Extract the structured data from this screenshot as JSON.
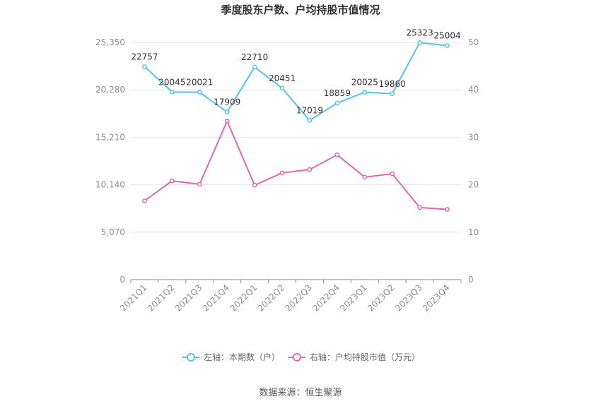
{
  "chart_data": {
    "type": "line",
    "title": "季度股东户数、户均持股市值情况",
    "categories": [
      "2021Q1",
      "2021Q2",
      "2021Q3",
      "2021Q4",
      "2022Q1",
      "2022Q2",
      "2022Q3",
      "2022Q4",
      "2023Q1",
      "2023Q2",
      "2023Q3",
      "2023Q4"
    ],
    "left_axis": {
      "min": 0,
      "max": 25350,
      "ticks": [
        "0",
        "5,070",
        "10,140",
        "15,210",
        "20,280",
        "25,350"
      ]
    },
    "right_axis": {
      "min": 0,
      "max": 50,
      "ticks": [
        "0",
        "10",
        "20",
        "30",
        "40",
        "50"
      ]
    },
    "series": [
      {
        "name": "左轴：本期数（户）",
        "axis": "left",
        "color": "#5bc0eb",
        "values": [
          22757,
          20045,
          20021,
          17909,
          22710,
          20451,
          17019,
          18859,
          20025,
          19860,
          25323,
          25004
        ],
        "labels": [
          "22757",
          "20045",
          "20021",
          "17909",
          "22710",
          "20451",
          "17019",
          "18859",
          "20025",
          "19860",
          "25323",
          "25004"
        ]
      },
      {
        "name": "右轴：户均持股市值（万元）",
        "axis": "right",
        "color": "#d66bb0",
        "values": [
          16.6,
          20.8,
          20.1,
          33.4,
          19.9,
          22.5,
          23.2,
          26.3,
          21.6,
          22.3,
          15.2,
          14.8
        ]
      }
    ],
    "grid": true,
    "legend_position": "bottom"
  },
  "source_text": "数据来源：恒生聚源"
}
